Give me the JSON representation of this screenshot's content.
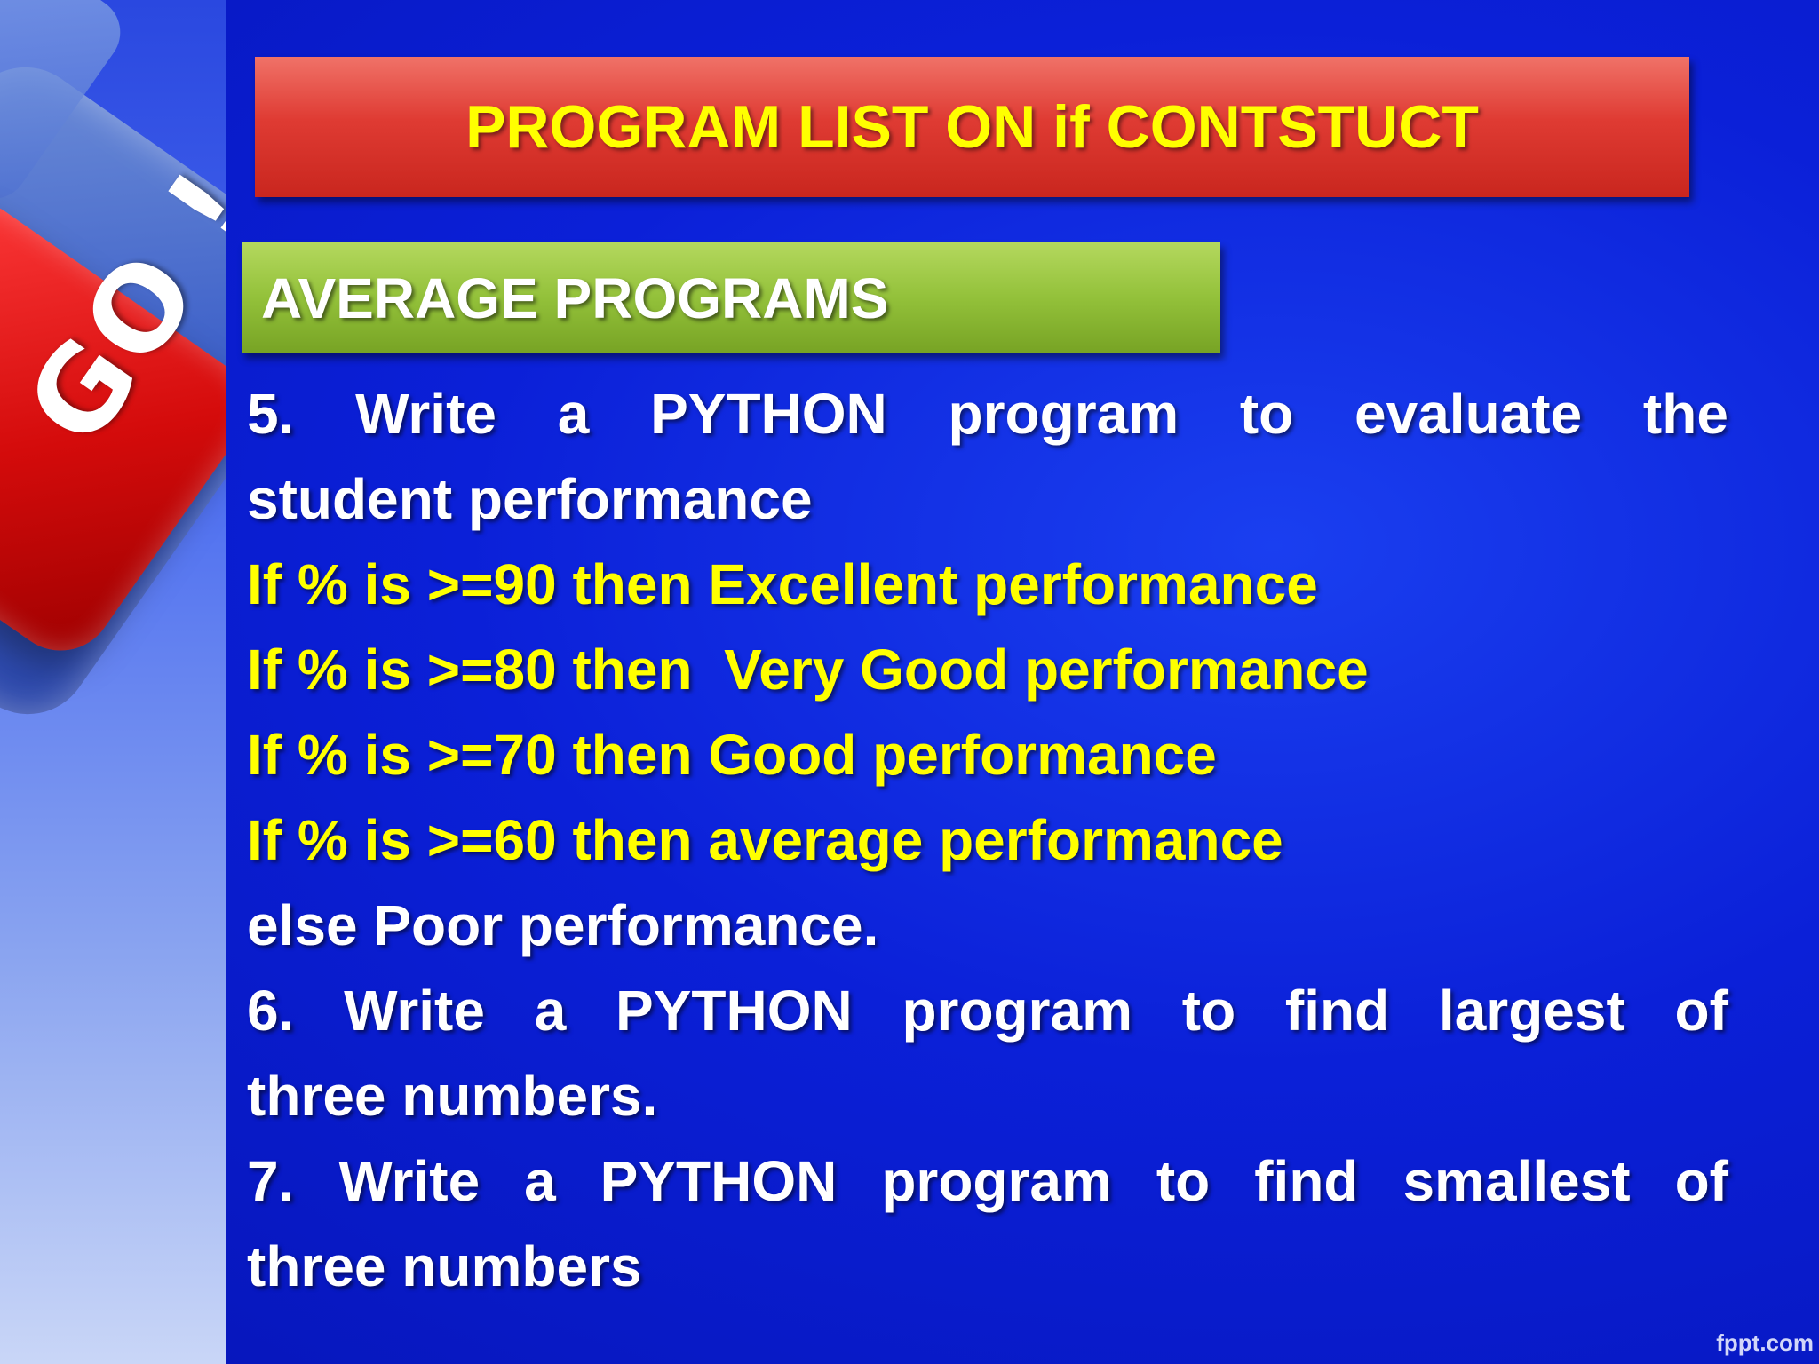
{
  "slide": {
    "title": "PROGRAM LIST ON if CONTSTUCT",
    "section_heading": "AVERAGE PROGRAMS",
    "key_label": "GO !",
    "items": {
      "item5_line1_words": [
        "5.",
        "Write",
        "a",
        "PYTHON",
        "program",
        "to",
        "evaluate",
        "the"
      ],
      "item5_line2": "student performance",
      "condition_90": "If % is >=90 then Excellent performance",
      "condition_80": "If % is >=80 then  Very Good performance",
      "condition_70": "If % is >=70 then Good performance",
      "condition_60": "If % is >=60 then average performance",
      "else_line": "else Poor performance.",
      "item6_line1_words": [
        "6.",
        "Write",
        "a",
        "PYTHON",
        "program",
        "to",
        "find",
        "largest",
        "of"
      ],
      "item6_line2": "three numbers.",
      "item7_line1_words": [
        "7.",
        "Write",
        "a",
        "PYTHON",
        "program",
        "to",
        "find",
        "smallest",
        "of"
      ],
      "item7_line2": "three numbers"
    },
    "watermark": "fppt.com"
  },
  "colors": {
    "background": "#0b20d8",
    "title_banner": "#df3b33",
    "section_banner": "#93c13a",
    "highlight_text": "#ffff00",
    "body_text": "#ffffff"
  }
}
